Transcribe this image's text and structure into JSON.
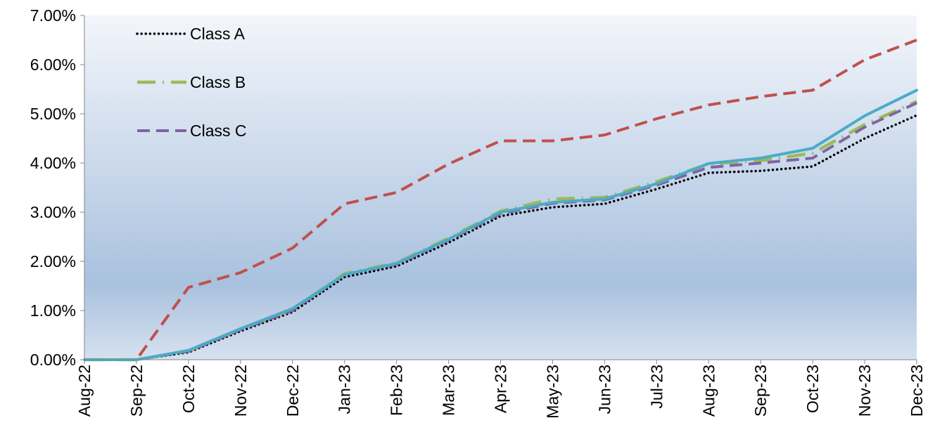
{
  "chart_data": {
    "type": "line",
    "categories": [
      "Aug-22",
      "Sep-22",
      "Oct-22",
      "Nov-22",
      "Dec-22",
      "Jan-23",
      "Feb-23",
      "Mar-23",
      "Apr-23",
      "May-23",
      "Jun-23",
      "Jul-23",
      "Aug-23",
      "Sep-23",
      "Oct-23",
      "Nov-23",
      "Dec-23"
    ],
    "y_ticks": [
      "0.00%",
      "1.00%",
      "2.00%",
      "3.00%",
      "4.00%",
      "5.00%",
      "6.00%",
      "7.00%"
    ],
    "ylim": [
      0,
      7
    ],
    "title": "",
    "xlabel": "",
    "ylabel": "",
    "grid": false,
    "legend_position": "top-left",
    "series": [
      {
        "name": "Class A",
        "color": "#000000",
        "style": "dotted",
        "values": [
          0,
          0,
          0.15,
          0.58,
          0.97,
          1.68,
          1.9,
          2.38,
          2.92,
          3.1,
          3.17,
          3.47,
          3.8,
          3.84,
          3.93,
          4.5,
          4.97
        ]
      },
      {
        "name": "Class B",
        "color": "#9bbb59",
        "style": "long-dash-dot",
        "values": [
          0,
          0,
          0.18,
          0.62,
          1.02,
          1.75,
          1.97,
          2.47,
          3.02,
          3.27,
          3.3,
          3.62,
          3.98,
          4.05,
          4.2,
          4.78,
          5.25
        ]
      },
      {
        "name": "Class C",
        "color": "#8064a2",
        "style": "dashed",
        "values": [
          0,
          0,
          0.17,
          0.61,
          1.0,
          1.73,
          1.94,
          2.43,
          2.97,
          3.18,
          3.25,
          3.55,
          3.91,
          4.0,
          4.1,
          4.73,
          5.22
        ]
      },
      {
        "name": "",
        "color": "#c0504d",
        "style": "dashed",
        "values": [
          0,
          0,
          1.47,
          1.77,
          2.27,
          3.17,
          3.4,
          3.98,
          4.45,
          4.45,
          4.57,
          4.9,
          5.18,
          5.35,
          5.48,
          6.1,
          6.5
        ]
      },
      {
        "name": "",
        "color": "#4bacc6",
        "style": "solid",
        "values": [
          0,
          0,
          0.19,
          0.63,
          1.04,
          1.73,
          1.96,
          2.45,
          3.0,
          3.2,
          3.27,
          3.58,
          3.99,
          4.1,
          4.3,
          4.96,
          5.48
        ]
      }
    ]
  }
}
